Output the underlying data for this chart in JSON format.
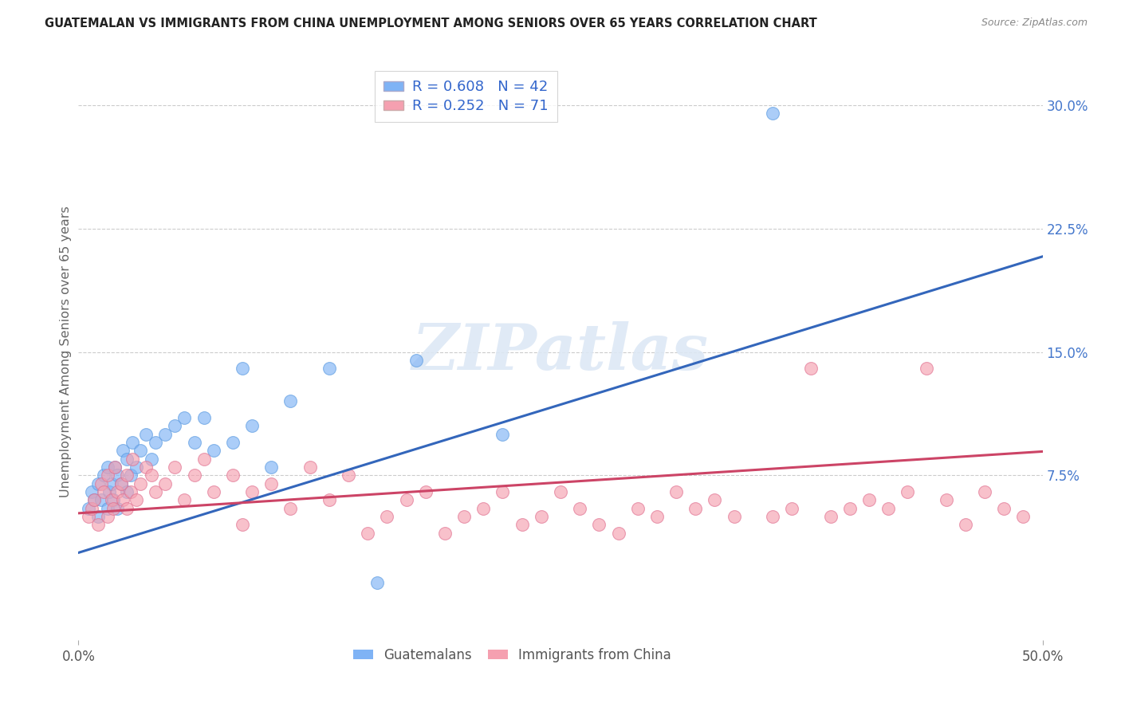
{
  "title": "GUATEMALAN VS IMMIGRANTS FROM CHINA UNEMPLOYMENT AMONG SENIORS OVER 65 YEARS CORRELATION CHART",
  "source": "Source: ZipAtlas.com",
  "ylabel": "Unemployment Among Seniors over 65 years",
  "xlim": [
    0.0,
    0.5
  ],
  "ylim": [
    -0.025,
    0.325
  ],
  "xtick_vals": [
    0.0,
    0.5
  ],
  "xtick_labels": [
    "0.0%",
    "50.0%"
  ],
  "ytick_vals": [
    0.075,
    0.15,
    0.225,
    0.3
  ],
  "ytick_labels": [
    "7.5%",
    "15.0%",
    "22.5%",
    "30.0%"
  ],
  "grid_color": "#cccccc",
  "background_color": "#ffffff",
  "watermark_text": "ZIPatlas",
  "blue_color": "#7fb3f5",
  "blue_edge_color": "#5a9ae0",
  "blue_line_color": "#3366bb",
  "pink_color": "#f5a0b0",
  "pink_edge_color": "#e07090",
  "pink_line_color": "#cc4466",
  "legend_R_blue": "0.608",
  "legend_N_blue": "42",
  "legend_R_pink": "0.252",
  "legend_N_pink": "71",
  "legend_label_blue": "Guatemalans",
  "legend_label_pink": "Immigrants from China",
  "blue_intercept": 0.028,
  "blue_slope": 0.36,
  "pink_intercept": 0.052,
  "pink_slope": 0.075,
  "blue_x": [
    0.005,
    0.007,
    0.008,
    0.01,
    0.01,
    0.012,
    0.013,
    0.015,
    0.015,
    0.016,
    0.017,
    0.018,
    0.019,
    0.02,
    0.02,
    0.022,
    0.023,
    0.025,
    0.025,
    0.027,
    0.028,
    0.03,
    0.032,
    0.035,
    0.038,
    0.04,
    0.045,
    0.05,
    0.055,
    0.06,
    0.065,
    0.07,
    0.08,
    0.085,
    0.09,
    0.1,
    0.11,
    0.13,
    0.155,
    0.175,
    0.22,
    0.36
  ],
  "blue_y": [
    0.055,
    0.065,
    0.06,
    0.05,
    0.07,
    0.06,
    0.075,
    0.055,
    0.08,
    0.065,
    0.07,
    0.06,
    0.08,
    0.055,
    0.075,
    0.07,
    0.09,
    0.065,
    0.085,
    0.075,
    0.095,
    0.08,
    0.09,
    0.1,
    0.085,
    0.095,
    0.1,
    0.105,
    0.11,
    0.095,
    0.11,
    0.09,
    0.095,
    0.14,
    0.105,
    0.08,
    0.12,
    0.14,
    0.01,
    0.145,
    0.1,
    0.295
  ],
  "pink_x": [
    0.005,
    0.007,
    0.008,
    0.01,
    0.012,
    0.013,
    0.015,
    0.015,
    0.017,
    0.018,
    0.019,
    0.02,
    0.022,
    0.023,
    0.025,
    0.025,
    0.027,
    0.028,
    0.03,
    0.032,
    0.035,
    0.038,
    0.04,
    0.045,
    0.05,
    0.055,
    0.06,
    0.065,
    0.07,
    0.08,
    0.085,
    0.09,
    0.1,
    0.11,
    0.12,
    0.13,
    0.14,
    0.15,
    0.16,
    0.17,
    0.18,
    0.19,
    0.2,
    0.21,
    0.22,
    0.23,
    0.24,
    0.25,
    0.26,
    0.27,
    0.28,
    0.29,
    0.3,
    0.31,
    0.32,
    0.33,
    0.34,
    0.36,
    0.37,
    0.38,
    0.39,
    0.4,
    0.41,
    0.42,
    0.43,
    0.44,
    0.45,
    0.46,
    0.47,
    0.48,
    0.49
  ],
  "pink_y": [
    0.05,
    0.055,
    0.06,
    0.045,
    0.07,
    0.065,
    0.05,
    0.075,
    0.06,
    0.055,
    0.08,
    0.065,
    0.07,
    0.06,
    0.055,
    0.075,
    0.065,
    0.085,
    0.06,
    0.07,
    0.08,
    0.075,
    0.065,
    0.07,
    0.08,
    0.06,
    0.075,
    0.085,
    0.065,
    0.075,
    0.045,
    0.065,
    0.07,
    0.055,
    0.08,
    0.06,
    0.075,
    0.04,
    0.05,
    0.06,
    0.065,
    0.04,
    0.05,
    0.055,
    0.065,
    0.045,
    0.05,
    0.065,
    0.055,
    0.045,
    0.04,
    0.055,
    0.05,
    0.065,
    0.055,
    0.06,
    0.05,
    0.05,
    0.055,
    0.14,
    0.05,
    0.055,
    0.06,
    0.055,
    0.065,
    0.14,
    0.06,
    0.045,
    0.065,
    0.055,
    0.05
  ]
}
